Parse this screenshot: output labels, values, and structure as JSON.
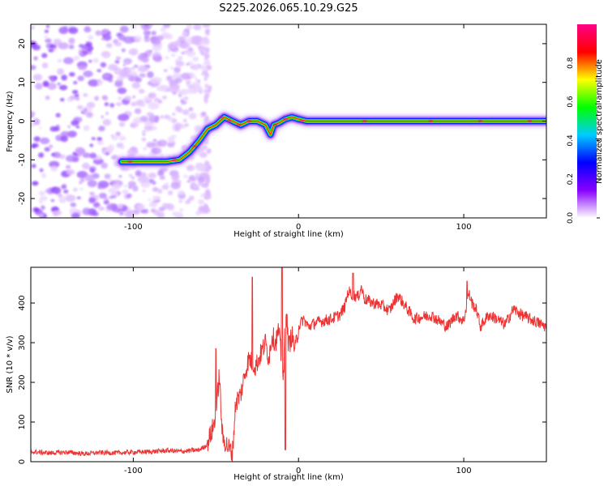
{
  "title": "S225.2026.065.10.29.G25",
  "colors": {
    "snr_line": "#ee3333",
    "background": "#ffffff",
    "axis": "#000000"
  },
  "chart_data": [
    {
      "type": "heatmap",
      "title": "S225.2026.065.10.29.G25",
      "xlabel": "Height of straight line (km)",
      "ylabel": "Frequency (Hz)",
      "xlim": [
        -162,
        150
      ],
      "ylim": [
        -25,
        25
      ],
      "xticks": [
        -100,
        0,
        100
      ],
      "yticks": [
        -20,
        -10,
        0,
        10,
        20
      ],
      "colorbar": {
        "label": "Normalized spectral amplitude",
        "range": [
          0,
          1
        ],
        "ticks": [
          "0.0",
          "0.2",
          "0.4",
          "0.6",
          "0.8"
        ],
        "tick_values": [
          0.0,
          0.2,
          0.4,
          0.6,
          0.8
        ],
        "colormap": [
          "#ffffff",
          "#8800ff",
          "#0000ff",
          "#00ccff",
          "#00ff00",
          "#ffff00",
          "#ff0000",
          "#ff0088"
        ]
      },
      "ridge": {
        "x": [
          -107,
          -90,
          -80,
          -72,
          -66,
          -60,
          -55,
          -50,
          -45,
          -40,
          -35,
          -30,
          -25,
          -20,
          -17,
          -15,
          -12,
          -8,
          -4,
          0,
          5,
          10,
          150
        ],
        "y": [
          -10.5,
          -10.5,
          -10.5,
          -10,
          -8,
          -5,
          -2,
          -1,
          1,
          0,
          -1,
          0,
          0,
          -1,
          -3.5,
          -1,
          -0.5,
          0.5,
          1,
          0.5,
          0,
          0,
          0
        ]
      },
      "noise_region_x": [
        -162,
        -55
      ]
    },
    {
      "type": "line",
      "xlabel": "Height of straight line (km)",
      "ylabel": "SNR (10 * v/v)",
      "xlim": [
        -162,
        150
      ],
      "ylim": [
        0,
        490
      ],
      "xticks": [
        -100,
        0,
        100
      ],
      "yticks": [
        0,
        100,
        200,
        300,
        400
      ],
      "series": [
        {
          "name": "SNR",
          "x": [
            -162,
            -150,
            -140,
            -130,
            -120,
            -110,
            -100,
            -90,
            -80,
            -70,
            -60,
            -56,
            -53,
            -50,
            -48,
            -46,
            -43,
            -40,
            -38,
            -35,
            -32,
            -30,
            -28,
            -26,
            -24,
            -22,
            -20,
            -18,
            -16,
            -14,
            -12,
            -10,
            -9,
            -8,
            -6,
            -4,
            -2,
            0,
            3,
            6,
            10,
            15,
            20,
            25,
            28,
            30,
            33,
            36,
            38,
            40,
            45,
            50,
            55,
            60,
            65,
            70,
            75,
            80,
            85,
            90,
            95,
            100,
            103,
            105,
            108,
            110,
            115,
            120,
            125,
            130,
            135,
            140,
            145,
            150
          ],
          "y": [
            25,
            22,
            24,
            20,
            23,
            22,
            24,
            25,
            28,
            26,
            30,
            40,
            70,
            110,
            220,
            60,
            40,
            20,
            150,
            170,
            230,
            260,
            250,
            240,
            260,
            280,
            300,
            260,
            320,
            300,
            330,
            240,
            200,
            420,
            290,
            320,
            280,
            340,
            360,
            340,
            350,
            355,
            360,
            370,
            390,
            430,
            420,
            415,
            440,
            410,
            400,
            395,
            380,
            420,
            390,
            360,
            365,
            370,
            355,
            340,
            370,
            355,
            425,
            400,
            380,
            340,
            370,
            360,
            345,
            385,
            370,
            360,
            350,
            340
          ],
          "peaks": [
            {
              "x": -50,
              "y": 285
            },
            {
              "x": -28,
              "y": 465
            },
            {
              "x": -10,
              "y": 490
            },
            {
              "x": -8,
              "y": 30
            },
            {
              "x": 33,
              "y": 475
            },
            {
              "x": 102,
              "y": 455
            }
          ]
        }
      ]
    }
  ]
}
